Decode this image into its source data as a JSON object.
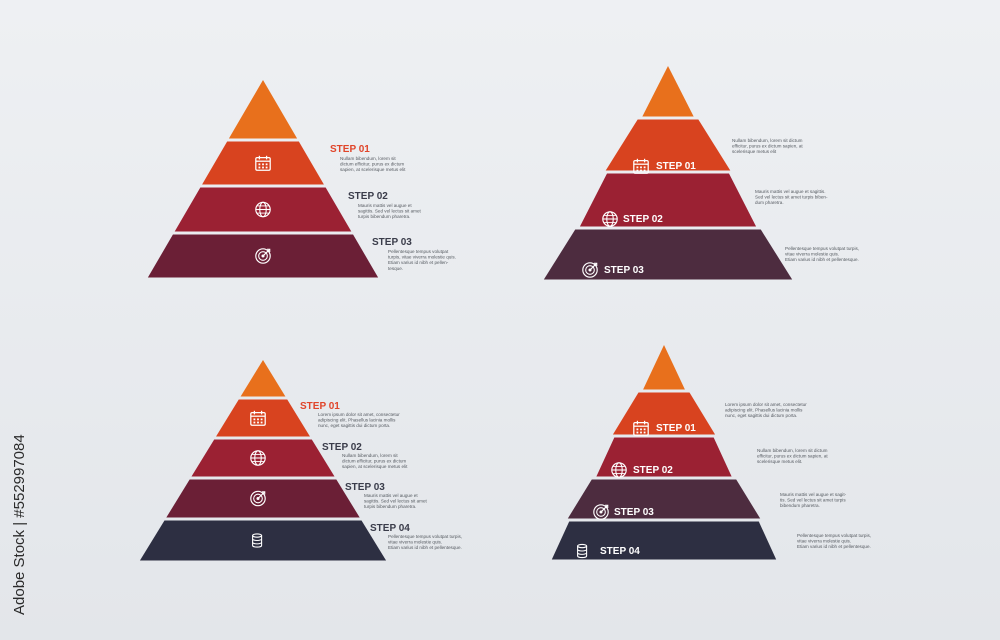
{
  "colors": {
    "tier_orange": "#e8701c",
    "tier_red": "#d8431f",
    "tier_crimson": "#9b2133",
    "tier_wine": "#6b1f36",
    "tier_plum": "#4d2c3f",
    "tier_navy": "#2d2f42",
    "step_label_orange": "#e0452a",
    "step_label_dark": "#3a3c4a",
    "background": "#eceef1"
  },
  "side_text": "Adobe Stock | #552997084",
  "diagrams": [
    {
      "id": "pyramid-1",
      "steps": [
        {
          "label": "STEP 01",
          "icon": "calendar-icon",
          "desc": [
            "Nullam bibendum, lorem sit",
            "dictum efficitur, purus ex dictum",
            "sapien, at scelerisque metus elit"
          ]
        },
        {
          "label": "STEP 02",
          "icon": "globe-icon",
          "desc": [
            "Mauris mattis vel augue et",
            "sagittis. Sed vel lectus sit amet",
            "turpis bibendum pharetra."
          ]
        },
        {
          "label": "STEP 03",
          "icon": "target-icon",
          "desc": [
            "Pellentesque tempus volutpat",
            "turpis, vitae viverra molestie quis.",
            "Etiam varius id nibh et pellen-",
            "tesque."
          ]
        }
      ]
    },
    {
      "id": "pyramid-2",
      "steps": [
        {
          "label": "STEP 01",
          "icon": "calendar-icon",
          "desc": [
            "Nullam bibendum, lorem sit dictum",
            "efficitur, purus ex dictum sapien, at",
            "scelerisque metus elit"
          ]
        },
        {
          "label": "STEP 02",
          "icon": "globe-icon",
          "desc": [
            "Mauris mattis vel augue et sagittis.",
            "Sed vel lectus sit amet turpis biben-",
            "dum pharetra."
          ]
        },
        {
          "label": "STEP 03",
          "icon": "target-icon",
          "desc": [
            "Pellentesque tempus volutpat turpis,",
            "vitae viverra molestie quis.",
            "Etiam varius id nibh et pellentesque."
          ]
        }
      ]
    },
    {
      "id": "pyramid-3",
      "steps": [
        {
          "label": "STEP 01",
          "icon": "calendar-icon",
          "desc": [
            "Lorem ipsum dolor sit amet, consectetur",
            "adipiscing elit. Phasellus lacinia mollis",
            "nunc, eget sagittis dui dictum porta."
          ]
        },
        {
          "label": "STEP 02",
          "icon": "globe-icon",
          "desc": [
            "Nullam bibendum, lorem sit",
            "dictum efficitur, purus ex dictum",
            "sapien, at scelerisque metus elit"
          ]
        },
        {
          "label": "STEP 03",
          "icon": "target-icon",
          "desc": [
            "Mauris mattis vel augue et",
            "sagittis. Sed vel lectus sit amet",
            "turpis bibendum pharetra."
          ]
        },
        {
          "label": "STEP 04",
          "icon": "coins-icon",
          "desc": [
            "Pellentesque tempus volutpat turpis,",
            "vitae viverra molestie quis.",
            "Etiam varius id nibh et pellentesque."
          ]
        }
      ]
    },
    {
      "id": "pyramid-4",
      "steps": [
        {
          "label": "STEP 01",
          "icon": "calendar-icon",
          "desc": [
            "Lorem ipsum dolor sit amet, consectetur",
            "adipiscing elit. Phasellus lacinia mollis",
            "nunc, eget sagittis dui dictum porta."
          ]
        },
        {
          "label": "STEP 02",
          "icon": "globe-icon",
          "desc": [
            "Nullam bibendum, lorem sit dictum",
            "efficitur, purus ex dictum sapien, at",
            "scelerisque metus elit."
          ]
        },
        {
          "label": "STEP 03",
          "icon": "target-icon",
          "desc": [
            "Mauris mattis vel augue et sagit-",
            "tis. Sed vel lectus sit amet turpis",
            "bibendum pharetra."
          ]
        },
        {
          "label": "STEP 04",
          "icon": "coins-icon",
          "desc": [
            "Pellentesque tempus volutpat turpis,",
            "vitae viverra molestie quis.",
            "Etiam varius id nibh et pellentesque."
          ]
        }
      ]
    }
  ]
}
